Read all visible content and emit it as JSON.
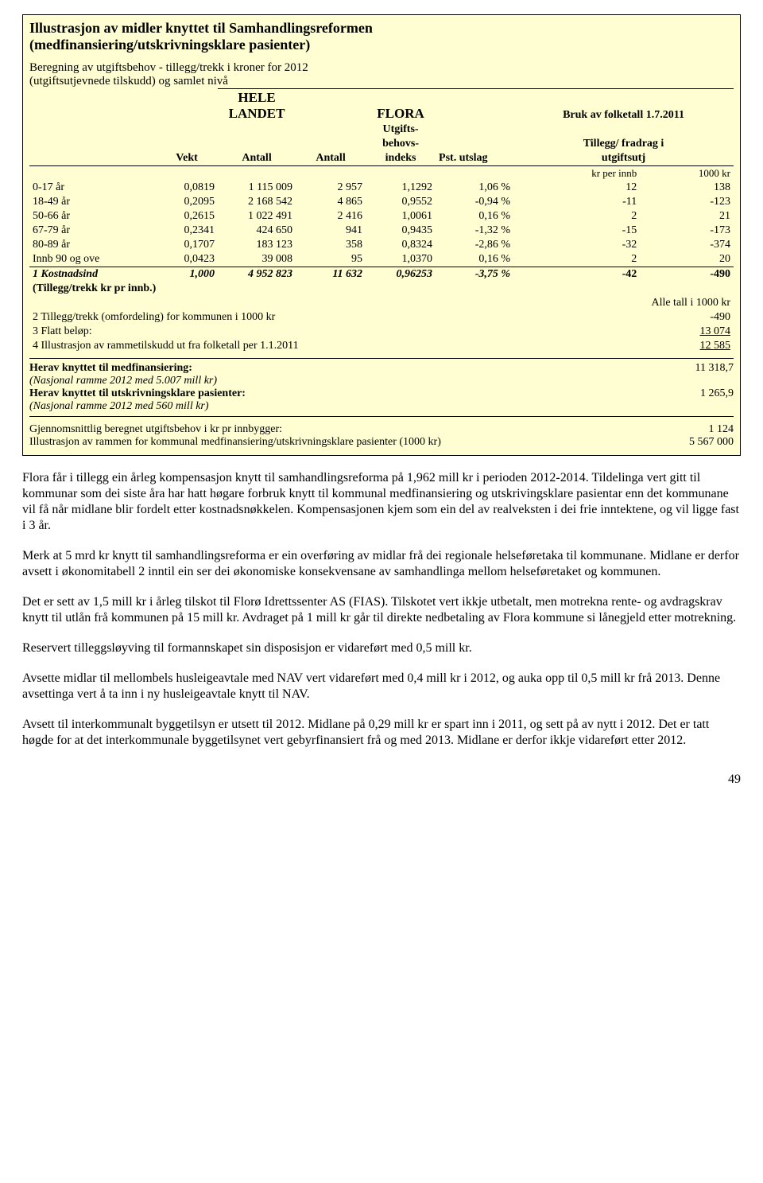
{
  "box": {
    "title": "Illustrasjon av midler knyttet til Samhandlingsreformen",
    "subtitle": "(medfinansiering/utskrivningsklare pasienter)",
    "calc1": "Beregning av utgiftsbehov - tillegg/trekk i kroner for 2012",
    "calc2": "(utgiftsutjevnede tilskudd) og samlet nivå",
    "hl_hele": "HELE LANDET",
    "hl_flora": "FLORA",
    "hl_bruk": "Bruk av folketall 1.7.2011",
    "hl_vekt": "Vekt",
    "hl_antall": "Antall",
    "hl_utg1": "Utgifts-",
    "hl_utg2": "behovs-",
    "hl_utg3": "indeks",
    "hl_pst": "Pst. utslag",
    "hl_till1": "Tillegg/ fradrag i",
    "hl_till2": "utgiftsutj",
    "hl_krinnb": "kr per innb",
    "hl_1000kr": "1000 kr",
    "rows": [
      {
        "l": "0-17 år",
        "v": "0,0819",
        "a1": "1 115 009",
        "a2": "2 957",
        "idx": "1,1292",
        "pst": "1,06 %",
        "kr": "12",
        "k1000": "138"
      },
      {
        "l": "18-49 år",
        "v": "0,2095",
        "a1": "2 168 542",
        "a2": "4 865",
        "idx": "0,9552",
        "pst": "-0,94 %",
        "kr": "-11",
        "k1000": "-123"
      },
      {
        "l": "50-66 år",
        "v": "0,2615",
        "a1": "1 022 491",
        "a2": "2 416",
        "idx": "1,0061",
        "pst": "0,16 %",
        "kr": "2",
        "k1000": "21"
      },
      {
        "l": "67-79 år",
        "v": "0,2341",
        "a1": "424 650",
        "a2": "941",
        "idx": "0,9435",
        "pst": "-1,32 %",
        "kr": "-15",
        "k1000": "-173"
      },
      {
        "l": "80-89 år",
        "v": "0,1707",
        "a1": "183 123",
        "a2": "358",
        "idx": "0,8324",
        "pst": "-2,86 %",
        "kr": "-32",
        "k1000": "-374"
      },
      {
        "l": "Innb 90 og ove",
        "v": "0,0423",
        "a1": "39 008",
        "a2": "95",
        "idx": "1,0370",
        "pst": "0,16 %",
        "kr": "2",
        "k1000": "20"
      }
    ],
    "sumrow": {
      "l": "1 Kostnadsind",
      "v": "1,000",
      "a1": "4 952 823",
      "a2": "11 632",
      "idx": "0,96253",
      "pst": "-3,75 %",
      "kr": "-42",
      "k1000": "-490"
    },
    "tillegg_note": "(Tillegg/trekk kr pr innb.)",
    "alle_tall": "Alle tall i 1000 kr",
    "notes": [
      {
        "l": "2 Tillegg/trekk (omfordeling) for kommunen i 1000 kr",
        "v": "-490"
      },
      {
        "l": "3 Flatt beløp:",
        "v": "13 074"
      },
      {
        "l": "4 Illustrasjon av rammetilskudd ut fra folketall per 1.1.2011",
        "v": "12 585"
      }
    ],
    "summary": [
      {
        "l": "Herav knyttet til medfinansiering:",
        "r": "11 318,7",
        "bold": true
      },
      {
        "l": "(Nasjonal ramme 2012 med 5.007 mill kr)",
        "r": "",
        "italic": true
      },
      {
        "l": "Herav knyttet til utskrivningsklare pasienter:",
        "r": "1 265,9",
        "bold": true
      },
      {
        "l": "(Nasjonal ramme 2012 med 560 mill kr)",
        "r": "",
        "italic": true
      }
    ],
    "bottom": [
      {
        "l": "Gjennomsnittlig beregnet utgiftsbehov i kr pr innbygger:",
        "r": "1 124"
      },
      {
        "l": "Illustrasjon av rammen for kommunal medfinansiering/utskrivningsklare pasienter (1000 kr)",
        "r": "5 567 000"
      }
    ]
  },
  "paras": [
    "Flora får i tillegg ein årleg kompensasjon knytt til samhandlingsreforma på 1,962 mill kr i perioden 2012-2014. Tildelinga vert gitt til kommunar som dei siste åra har hatt høgare forbruk knytt til kommunal medfinansiering og utskrivingsklare pasientar enn det kommunane vil få når midlane blir fordelt etter kostnadsnøkkelen. Kompensasjonen kjem som ein del av realveksten i dei frie inntektene, og vil ligge fast i 3 år.",
    "Merk at 5 mrd kr knytt til samhandlingsreforma er ein overføring av midlar frå dei regionale helseføretaka til kommunane. Midlane er derfor avsett i økonomitabell 2 inntil ein ser dei økonomiske konsekvensane av samhandlinga mellom helseføretaket og kommunen.",
    "Det er sett av 1,5 mill kr i årleg tilskot til Florø Idrettssenter AS (FIAS). Tilskotet vert ikkje utbetalt, men motrekna rente- og avdragskrav knytt til utlån frå kommunen på 15 mill kr. Avdraget på 1 mill kr går til direkte nedbetaling av Flora kommune si lånegjeld etter motrekning.",
    "Reservert tilleggsløyving til formannskapet sin disposisjon er vidareført med 0,5 mill kr.",
    "Avsette midlar til mellombels husleigeavtale med NAV vert vidareført med 0,4 mill kr i 2012, og auka opp til 0,5 mill kr frå 2013. Denne avsettinga vert å ta inn i ny husleigeavtale knytt til NAV.",
    "Avsett til interkommunalt byggetilsyn er utsett til  2012. Midlane på 0,29 mill kr er spart inn i 2011, og sett på av nytt i 2012. Det er tatt høgde for at det interkommunale byggetilsynet vert gebyrfinansiert frå og med 2013. Midlane er derfor ikkje vidareført etter 2012."
  ],
  "page_num": "49"
}
